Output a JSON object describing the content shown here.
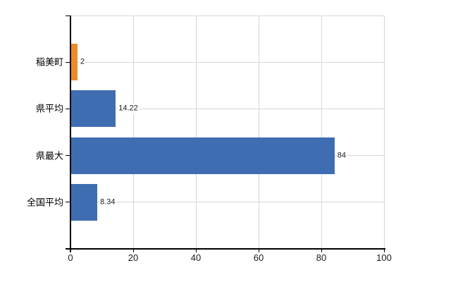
{
  "chart_data": {
    "type": "bar",
    "orientation": "horizontal",
    "title": "",
    "xlabel": "",
    "ylabel": "",
    "categories": [
      "稲美町",
      "県平均",
      "県最大",
      "全国平均"
    ],
    "values": [
      2,
      14.22,
      84,
      8.34
    ],
    "value_labels": [
      "2",
      "14.22",
      "84",
      "8.34"
    ],
    "bar_colors": [
      "#EE8A28",
      "#3F6DB2",
      "#3F6DB2",
      "#3F6DB2"
    ],
    "xlim": [
      0,
      100
    ],
    "x_ticks": [
      0,
      20,
      40,
      60,
      80,
      100
    ],
    "grid": true,
    "legend": false
  },
  "colors": {
    "highlight_bar": "#EE8A28",
    "default_bar": "#3F6DB2",
    "gridline": "#D6D6D6",
    "axis": "#000000",
    "text": "#000000",
    "background": "#FFFFFF"
  }
}
